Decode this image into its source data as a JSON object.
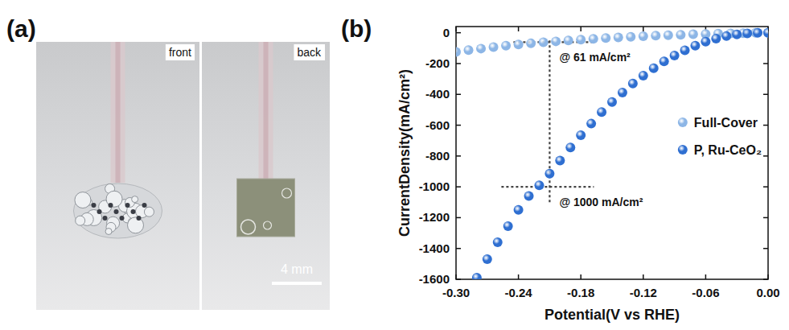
{
  "panel_a": {
    "letter": "(a)",
    "photos": [
      "front",
      "back"
    ],
    "scale_bar": "4 mm"
  },
  "panel_b": {
    "letter": "(b)"
  },
  "chart_data": {
    "type": "scatter",
    "x_label": "Potential(V vs RHE)",
    "y_label": "CurrentDensity(mA/cm²)",
    "xlim": [
      -0.3,
      0
    ],
    "xticks": [
      {
        "value": -0.3,
        "label": "-0.30"
      },
      -0.24,
      -0.18,
      -0.12,
      -0.06,
      {
        "value": 0,
        "label": "0.00"
      }
    ],
    "ylim": [
      -1600,
      40
    ],
    "yticks": [
      0,
      -200,
      -400,
      -600,
      -800,
      -1000,
      -1200,
      -1400,
      -1600
    ],
    "grid": false,
    "legend": "right",
    "marker": "circle",
    "annotations": [
      {
        "text": "@ 61 mA/cm²",
        "x": -0.21,
        "y": -61
      },
      {
        "text": "@ 1000 mA/cm²",
        "x": -0.21,
        "y": -1000
      }
    ],
    "series": [
      {
        "name": "Full-Cover",
        "color": "#8db6e6",
        "x": [
          -0.3,
          -0.288,
          -0.276,
          -0.264,
          -0.252,
          -0.24,
          -0.228,
          -0.216,
          -0.204,
          -0.192,
          -0.18,
          -0.168,
          -0.156,
          -0.144,
          -0.132,
          -0.12,
          -0.108,
          -0.096,
          -0.084,
          -0.072,
          -0.06,
          -0.048,
          -0.036,
          -0.024,
          -0.012,
          0
        ],
        "values": [
          -125,
          -113,
          -103,
          -93,
          -84,
          -76,
          -69,
          -62,
          -56,
          -50,
          -45,
          -40,
          -35,
          -31,
          -27,
          -23,
          -19,
          -16,
          -13,
          -10,
          -8,
          -6,
          -4,
          -3,
          -1,
          0
        ]
      },
      {
        "name": "P, Ru-CeO₂",
        "color": "#2f6fd1",
        "x": [
          -0.28,
          -0.27,
          -0.26,
          -0.25,
          -0.24,
          -0.23,
          -0.22,
          -0.21,
          -0.2,
          -0.19,
          -0.18,
          -0.17,
          -0.16,
          -0.15,
          -0.14,
          -0.13,
          -0.12,
          -0.11,
          -0.1,
          -0.09,
          -0.08,
          -0.07,
          -0.06,
          -0.05,
          -0.04,
          -0.03,
          -0.02,
          -0.01,
          0
        ],
        "values": [
          -1590,
          -1470,
          -1360,
          -1255,
          -1150,
          -1060,
          -990,
          -915,
          -830,
          -745,
          -665,
          -590,
          -515,
          -450,
          -388,
          -330,
          -278,
          -230,
          -186,
          -148,
          -114,
          -84,
          -58,
          -38,
          -22,
          -11,
          -4,
          -1,
          0
        ]
      }
    ]
  }
}
